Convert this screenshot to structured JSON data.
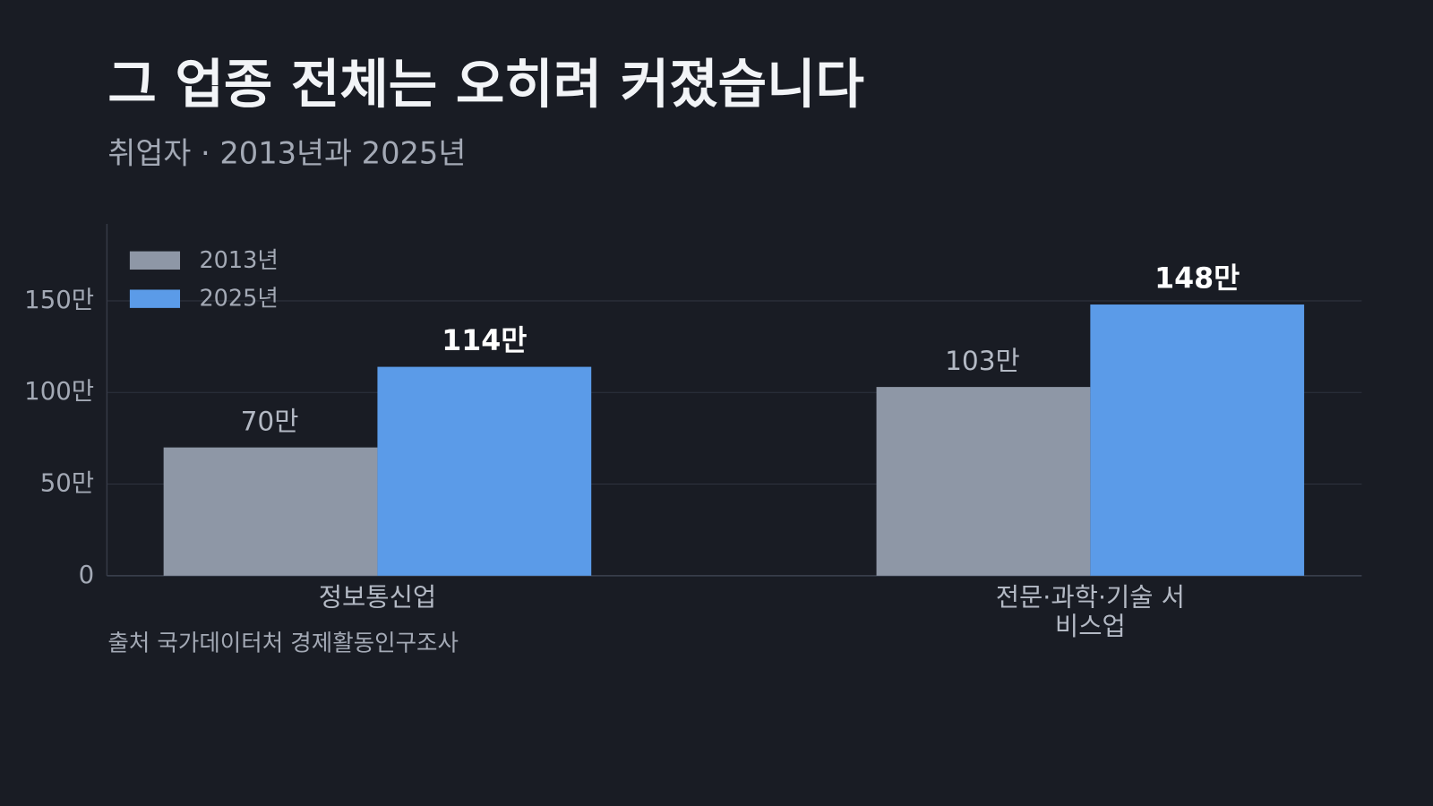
{
  "chart_data": {
    "type": "bar",
    "title": "그 업종 전체는 오히려 커졌습니다",
    "subtitle": "취업자 · 2013년과 2025년",
    "source": "출처 국가데이터처 경제활동인구조사",
    "categories": [
      "정보통신업",
      "전문·과학·기술 서비스업"
    ],
    "series": [
      {
        "name": "2013년",
        "color": "#8e97a6",
        "values": [
          70,
          103
        ],
        "value_labels": [
          "70만",
          "103만"
        ]
      },
      {
        "name": "2025년",
        "color": "#5b9be8",
        "values": [
          114,
          148
        ],
        "value_labels": [
          "114만",
          "148만"
        ]
      }
    ],
    "ylim": [
      0,
      192
    ],
    "yticks": [
      0,
      {
        "value": 50,
        "label": "50만"
      },
      {
        "value": 100,
        "label": "100만"
      },
      {
        "value": 150,
        "label": "150만"
      }
    ],
    "grid": true,
    "legend": "upper-left"
  }
}
